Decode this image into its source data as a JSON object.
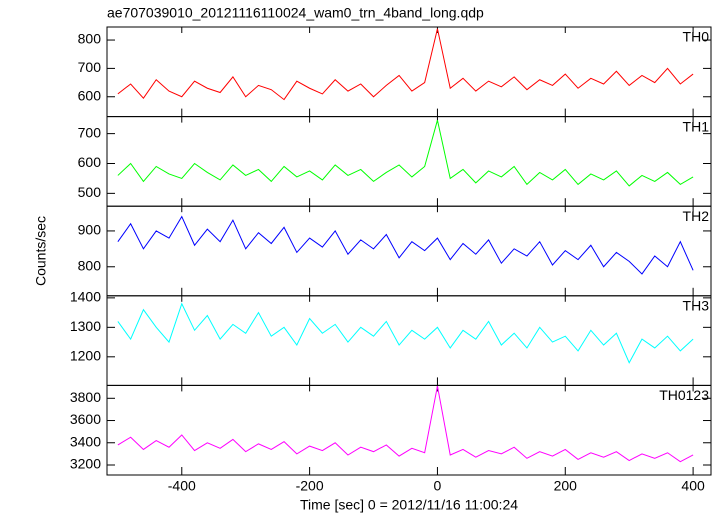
{
  "title": "ae707039010_20121116110024_wam0_trn_4band_long.qdp",
  "x_label": "Time [sec] 0 = 2012/11/16 11:00:24",
  "y_label": "Counts/sec",
  "chart_data": [
    {
      "type": "line",
      "xlim": [
        -517,
        428
      ],
      "xticks": [
        -400,
        -200,
        0,
        200,
        400
      ],
      "ylim": [
        530,
        846
      ],
      "yticks": [
        600,
        700,
        800
      ],
      "series": [
        {
          "name": "TH0",
          "color": "#ff0000",
          "x": [
            -500,
            -480,
            -460,
            -440,
            -420,
            -400,
            -380,
            -360,
            -340,
            -320,
            -300,
            -280,
            -260,
            -240,
            -220,
            -200,
            -180,
            -160,
            -140,
            -120,
            -100,
            -80,
            -60,
            -40,
            -20,
            0,
            20,
            40,
            60,
            80,
            100,
            120,
            140,
            160,
            180,
            200,
            220,
            240,
            260,
            280,
            300,
            320,
            340,
            360,
            380,
            400
          ],
          "values": [
            610,
            645,
            595,
            660,
            620,
            600,
            655,
            630,
            615,
            670,
            600,
            640,
            625,
            590,
            655,
            630,
            610,
            660,
            620,
            645,
            600,
            640,
            675,
            620,
            650,
            840,
            630,
            665,
            620,
            655,
            635,
            670,
            625,
            660,
            640,
            680,
            630,
            665,
            645,
            690,
            640,
            675,
            650,
            700,
            645,
            680
          ]
        }
      ]
    },
    {
      "type": "line",
      "xlim": [
        -517,
        428
      ],
      "xticks": [
        -400,
        -200,
        0,
        200,
        400
      ],
      "ylim": [
        457,
        757
      ],
      "yticks": [
        500,
        600,
        700
      ],
      "series": [
        {
          "name": "TH1",
          "color": "#00ff00",
          "x": [
            -500,
            -480,
            -460,
            -440,
            -420,
            -400,
            -380,
            -360,
            -340,
            -320,
            -300,
            -280,
            -260,
            -240,
            -220,
            -200,
            -180,
            -160,
            -140,
            -120,
            -100,
            -80,
            -60,
            -40,
            -20,
            0,
            20,
            40,
            60,
            80,
            100,
            120,
            140,
            160,
            180,
            200,
            220,
            240,
            260,
            280,
            300,
            320,
            340,
            360,
            380,
            400
          ],
          "values": [
            560,
            600,
            540,
            590,
            565,
            550,
            600,
            570,
            545,
            595,
            560,
            580,
            540,
            590,
            555,
            575,
            545,
            595,
            560,
            580,
            540,
            570,
            595,
            555,
            590,
            745,
            550,
            580,
            535,
            575,
            555,
            590,
            530,
            570,
            545,
            580,
            530,
            565,
            545,
            575,
            525,
            560,
            540,
            570,
            530,
            555
          ]
        }
      ]
    },
    {
      "type": "line",
      "xlim": [
        -517,
        428
      ],
      "xticks": [
        -400,
        -200,
        0,
        200,
        400
      ],
      "ylim": [
        719,
        969
      ],
      "yticks": [
        800,
        900
      ],
      "series": [
        {
          "name": "TH2",
          "color": "#0000ff",
          "x": [
            -500,
            -480,
            -460,
            -440,
            -420,
            -400,
            -380,
            -360,
            -340,
            -320,
            -300,
            -280,
            -260,
            -240,
            -220,
            -200,
            -180,
            -160,
            -140,
            -120,
            -100,
            -80,
            -60,
            -40,
            -20,
            0,
            20,
            40,
            60,
            80,
            100,
            120,
            140,
            160,
            180,
            200,
            220,
            240,
            260,
            280,
            300,
            320,
            340,
            360,
            380,
            400
          ],
          "values": [
            870,
            920,
            850,
            900,
            880,
            940,
            860,
            905,
            870,
            930,
            850,
            895,
            865,
            910,
            840,
            880,
            855,
            900,
            835,
            875,
            850,
            890,
            825,
            870,
            845,
            880,
            820,
            865,
            835,
            875,
            810,
            850,
            830,
            870,
            805,
            845,
            820,
            860,
            800,
            840,
            815,
            780,
            830,
            800,
            870,
            790
          ]
        }
      ]
    },
    {
      "type": "line",
      "xlim": [
        -517,
        428
      ],
      "xticks": [
        -400,
        -200,
        0,
        200,
        400
      ],
      "ylim": [
        1103,
        1407
      ],
      "yticks": [
        1200,
        1300,
        1400
      ],
      "series": [
        {
          "name": "TH3",
          "color": "#00ffff",
          "x": [
            -500,
            -480,
            -460,
            -440,
            -420,
            -400,
            -380,
            -360,
            -340,
            -320,
            -300,
            -280,
            -260,
            -240,
            -220,
            -200,
            -180,
            -160,
            -140,
            -120,
            -100,
            -80,
            -60,
            -40,
            -20,
            0,
            20,
            40,
            60,
            80,
            100,
            120,
            140,
            160,
            180,
            200,
            220,
            240,
            260,
            280,
            300,
            320,
            340,
            360,
            380,
            400
          ],
          "values": [
            1320,
            1260,
            1360,
            1300,
            1250,
            1380,
            1290,
            1340,
            1260,
            1310,
            1280,
            1350,
            1270,
            1300,
            1240,
            1330,
            1280,
            1310,
            1250,
            1300,
            1270,
            1320,
            1240,
            1290,
            1260,
            1300,
            1230,
            1290,
            1260,
            1320,
            1240,
            1280,
            1230,
            1300,
            1250,
            1270,
            1220,
            1290,
            1240,
            1280,
            1180,
            1260,
            1230,
            1270,
            1220,
            1260
          ]
        }
      ]
    },
    {
      "type": "line",
      "xlim": [
        -517,
        428
      ],
      "xticks": [
        -400,
        -200,
        0,
        200,
        400
      ],
      "ylim": [
        3110,
        3916
      ],
      "yticks": [
        3200,
        3400,
        3600,
        3800
      ],
      "series": [
        {
          "name": "TH0123",
          "color": "#ff00ff",
          "x": [
            -500,
            -480,
            -460,
            -440,
            -420,
            -400,
            -380,
            -360,
            -340,
            -320,
            -300,
            -280,
            -260,
            -240,
            -220,
            -200,
            -180,
            -160,
            -140,
            -120,
            -100,
            -80,
            -60,
            -40,
            -20,
            0,
            20,
            40,
            60,
            80,
            100,
            120,
            140,
            160,
            180,
            200,
            220,
            240,
            260,
            280,
            300,
            320,
            340,
            360,
            380,
            400
          ],
          "values": [
            3380,
            3450,
            3340,
            3420,
            3360,
            3470,
            3330,
            3400,
            3350,
            3430,
            3320,
            3390,
            3340,
            3410,
            3300,
            3370,
            3330,
            3400,
            3290,
            3360,
            3320,
            3380,
            3280,
            3350,
            3310,
            3910,
            3290,
            3340,
            3270,
            3330,
            3300,
            3360,
            3260,
            3320,
            3280,
            3340,
            3250,
            3310,
            3270,
            3320,
            3240,
            3300,
            3260,
            3310,
            3230,
            3290
          ]
        }
      ]
    }
  ]
}
